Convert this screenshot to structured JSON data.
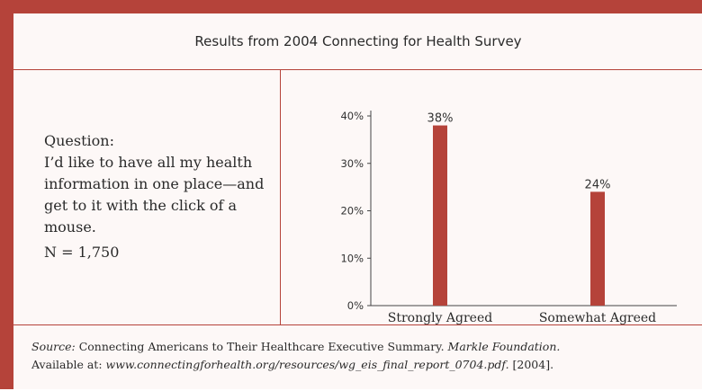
{
  "title": "Results from 2004 Connecting for Health Survey",
  "question": {
    "label": "Question:",
    "text": "I’d like to have all my health information in one place—and get to it with the click of a mouse.",
    "n": "N = 1,750"
  },
  "source": {
    "label": "Source:",
    "text_1": " Connecting Americans to Their Healthcare Executive Summary. ",
    "org": "Markle Foundation.",
    "available": "Available at: ",
    "url": "www.connectingforhealth.org/resources/wg_eis_final_report_0704.pdf.",
    "year": " [2004]."
  },
  "colors": {
    "accent": "#b5433a",
    "bar": "#b5433a"
  },
  "chart_data": {
    "type": "bar",
    "categories": [
      "Strongly Agreed",
      "Somewhat Agreed"
    ],
    "values": [
      38,
      24
    ],
    "data_labels": [
      "38%",
      "24%"
    ],
    "yticks": [
      "0%",
      "10%",
      "20%",
      "30%",
      "40%"
    ],
    "ylim": [
      0,
      40
    ],
    "grid": false
  }
}
